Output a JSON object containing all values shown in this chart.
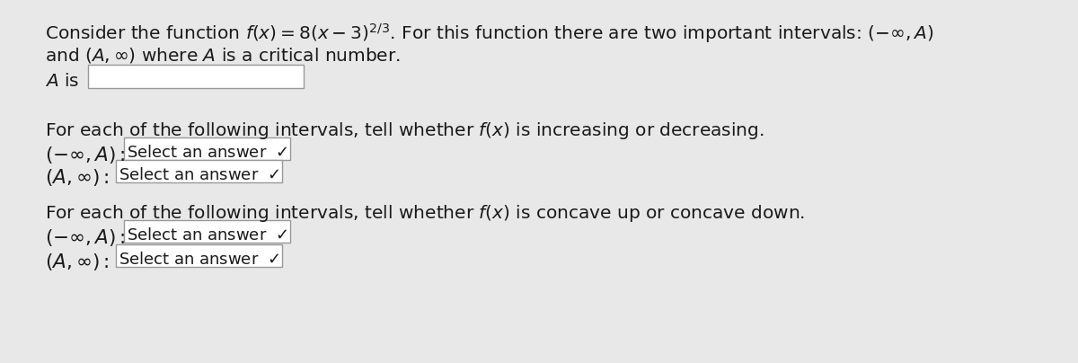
{
  "bg_color": "#e8e8e8",
  "inner_bg": "#f5f5f5",
  "text_color": "#1a1a1a",
  "box_color": "#ffffff",
  "box_edge_color": "#999999",
  "figsize": [
    12.0,
    4.04
  ],
  "dpi": 100,
  "font_size_main": 14.5,
  "font_size_small": 13.0
}
